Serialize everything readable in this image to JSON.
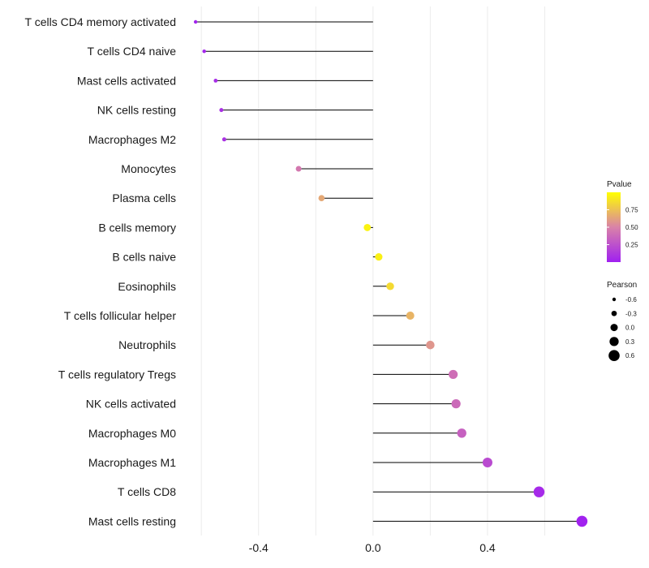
{
  "chart_data": {
    "type": "lollipop",
    "categories": [
      "T cells CD4 memory activated",
      "T cells CD4 naive",
      "Mast cells activated",
      "NK cells resting",
      "Macrophages M2",
      "Monocytes",
      "Plasma cells",
      "B cells memory",
      "B cells naive",
      "Eosinophils",
      "T cells follicular helper",
      "Neutrophils",
      "T cells regulatory  Tregs",
      "NK cells activated",
      "Macrophages M0",
      "Macrophages M1",
      "T cells CD8",
      "Mast cells resting"
    ],
    "pearson": [
      -0.62,
      -0.59,
      -0.55,
      -0.53,
      -0.52,
      -0.26,
      -0.18,
      -0.02,
      0.02,
      0.06,
      0.13,
      0.2,
      0.28,
      0.29,
      0.31,
      0.4,
      0.58,
      0.73
    ],
    "pvalue": [
      0.02,
      0.03,
      0.06,
      0.08,
      0.09,
      0.45,
      0.65,
      0.95,
      0.94,
      0.85,
      0.7,
      0.58,
      0.4,
      0.38,
      0.33,
      0.22,
      0.05,
      0.01
    ],
    "xlim": [
      -0.66,
      0.78
    ],
    "x_ticks": [
      -0.4,
      0.0,
      0.4
    ],
    "x_tick_labels": [
      "-0.4",
      "0.0",
      "0.4"
    ],
    "xlabel": "",
    "ylabel": "",
    "grid": true,
    "legend_pvalue": {
      "title": "Pvalue",
      "range": [
        0.0,
        1.0
      ],
      "ticks": [
        0.75,
        0.5,
        0.25
      ],
      "tick_labels": [
        "0.75",
        "0.50",
        "0.25"
      ],
      "color_low": "#a020f0",
      "color_mid": "#d982a8",
      "color_high": "#ffff00"
    },
    "legend_pearson": {
      "title": "Pearson",
      "values": [
        -0.6,
        -0.3,
        0.0,
        0.3,
        0.6
      ],
      "labels": [
        "-0.6",
        "-0.3",
        "0.0",
        "0.3",
        "0.6"
      ]
    }
  }
}
